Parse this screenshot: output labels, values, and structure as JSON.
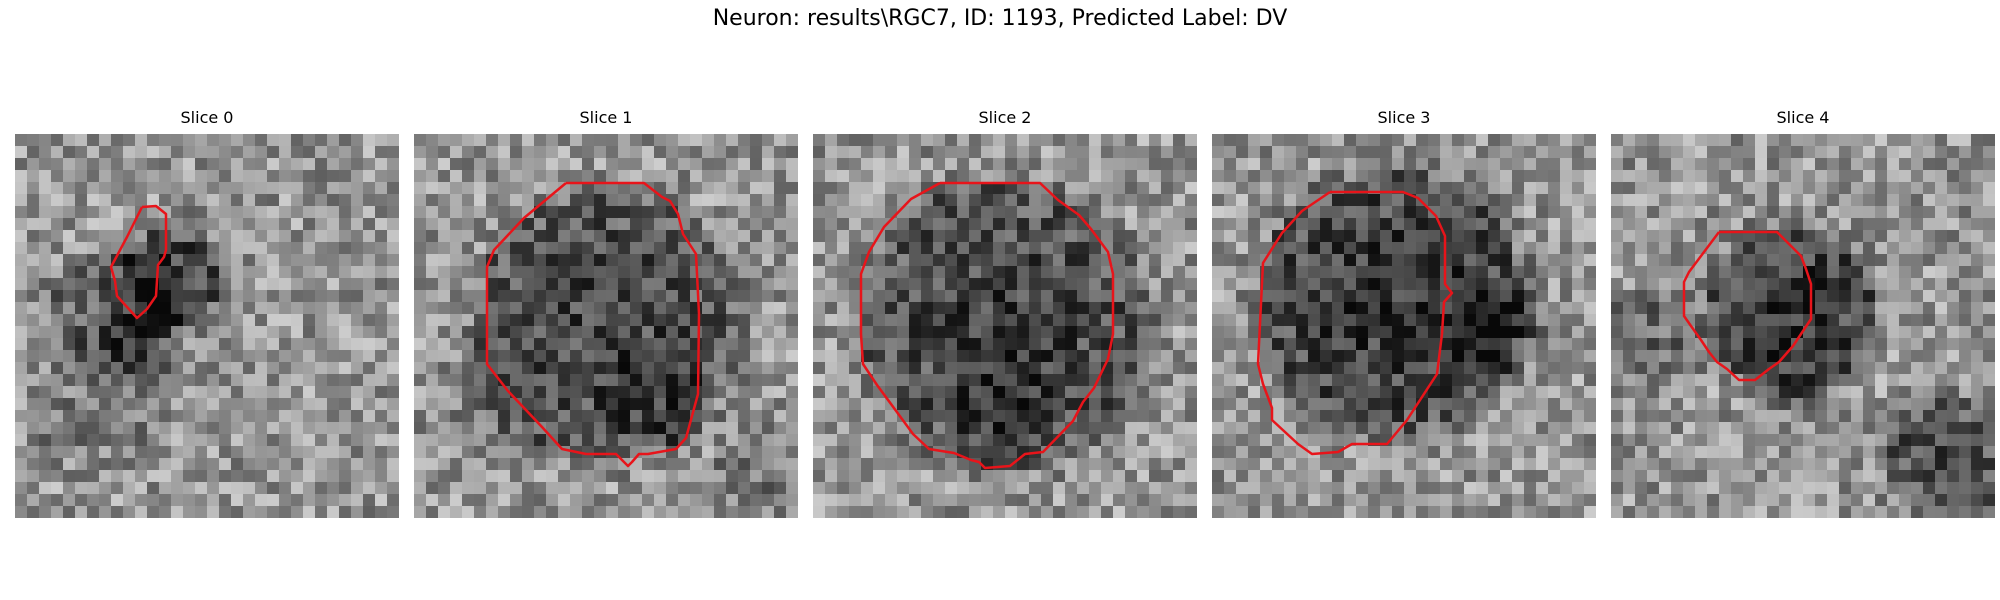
{
  "figure": {
    "title": "Neuron: results\\RGC7, ID: 1193, Predicted Label: DV",
    "outline_color": "#e8141a",
    "colormap": "gray"
  },
  "panels": [
    {
      "title": "Slice 0"
    },
    {
      "title": "Slice 1"
    },
    {
      "title": "Slice 2"
    },
    {
      "title": "Slice 3"
    },
    {
      "title": "Slice 4"
    }
  ]
}
